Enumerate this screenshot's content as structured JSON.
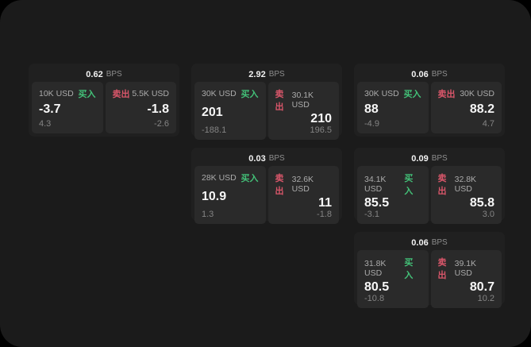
{
  "theme": {
    "page_bg": "#000000",
    "panel_bg": "#1b1b1b",
    "card_bg": "#202020",
    "subpanel_bg": "#2a2a2a",
    "buy_color": "#43c178",
    "sell_color": "#d9566a"
  },
  "labels": {
    "bps_unit": "BPS",
    "buy": "买入",
    "sell": "卖出"
  },
  "cards": [
    {
      "bps": "0.62",
      "buy": {
        "size": "10K USD",
        "value": "-3.7",
        "sub": "4.3"
      },
      "sell": {
        "size": "5.5K USD",
        "value": "-1.8",
        "sub": "-2.6"
      }
    },
    {
      "bps": "2.92",
      "buy": {
        "size": "30K USD",
        "value": "201",
        "sub": "-188.1"
      },
      "sell": {
        "size": "30.1K USD",
        "value": "210",
        "sub": "196.5"
      }
    },
    {
      "bps": "0.06",
      "buy": {
        "size": "30K USD",
        "value": "88",
        "sub": "-4.9"
      },
      "sell": {
        "size": "30K USD",
        "value": "88.2",
        "sub": "4.7"
      }
    },
    {
      "bps": "0.03",
      "buy": {
        "size": "28K USD",
        "value": "10.9",
        "sub": "1.3"
      },
      "sell": {
        "size": "32.6K USD",
        "value": "11",
        "sub": "-1.8"
      }
    },
    {
      "bps": "0.09",
      "buy": {
        "size": "34.1K USD",
        "value": "85.5",
        "sub": "-3.1"
      },
      "sell": {
        "size": "32.8K USD",
        "value": "85.8",
        "sub": "3.0"
      }
    },
    {
      "bps": "0.06",
      "buy": {
        "size": "31.8K USD",
        "value": "80.5",
        "sub": "-10.8"
      },
      "sell": {
        "size": "39.1K USD",
        "value": "80.7",
        "sub": "10.2"
      }
    }
  ]
}
